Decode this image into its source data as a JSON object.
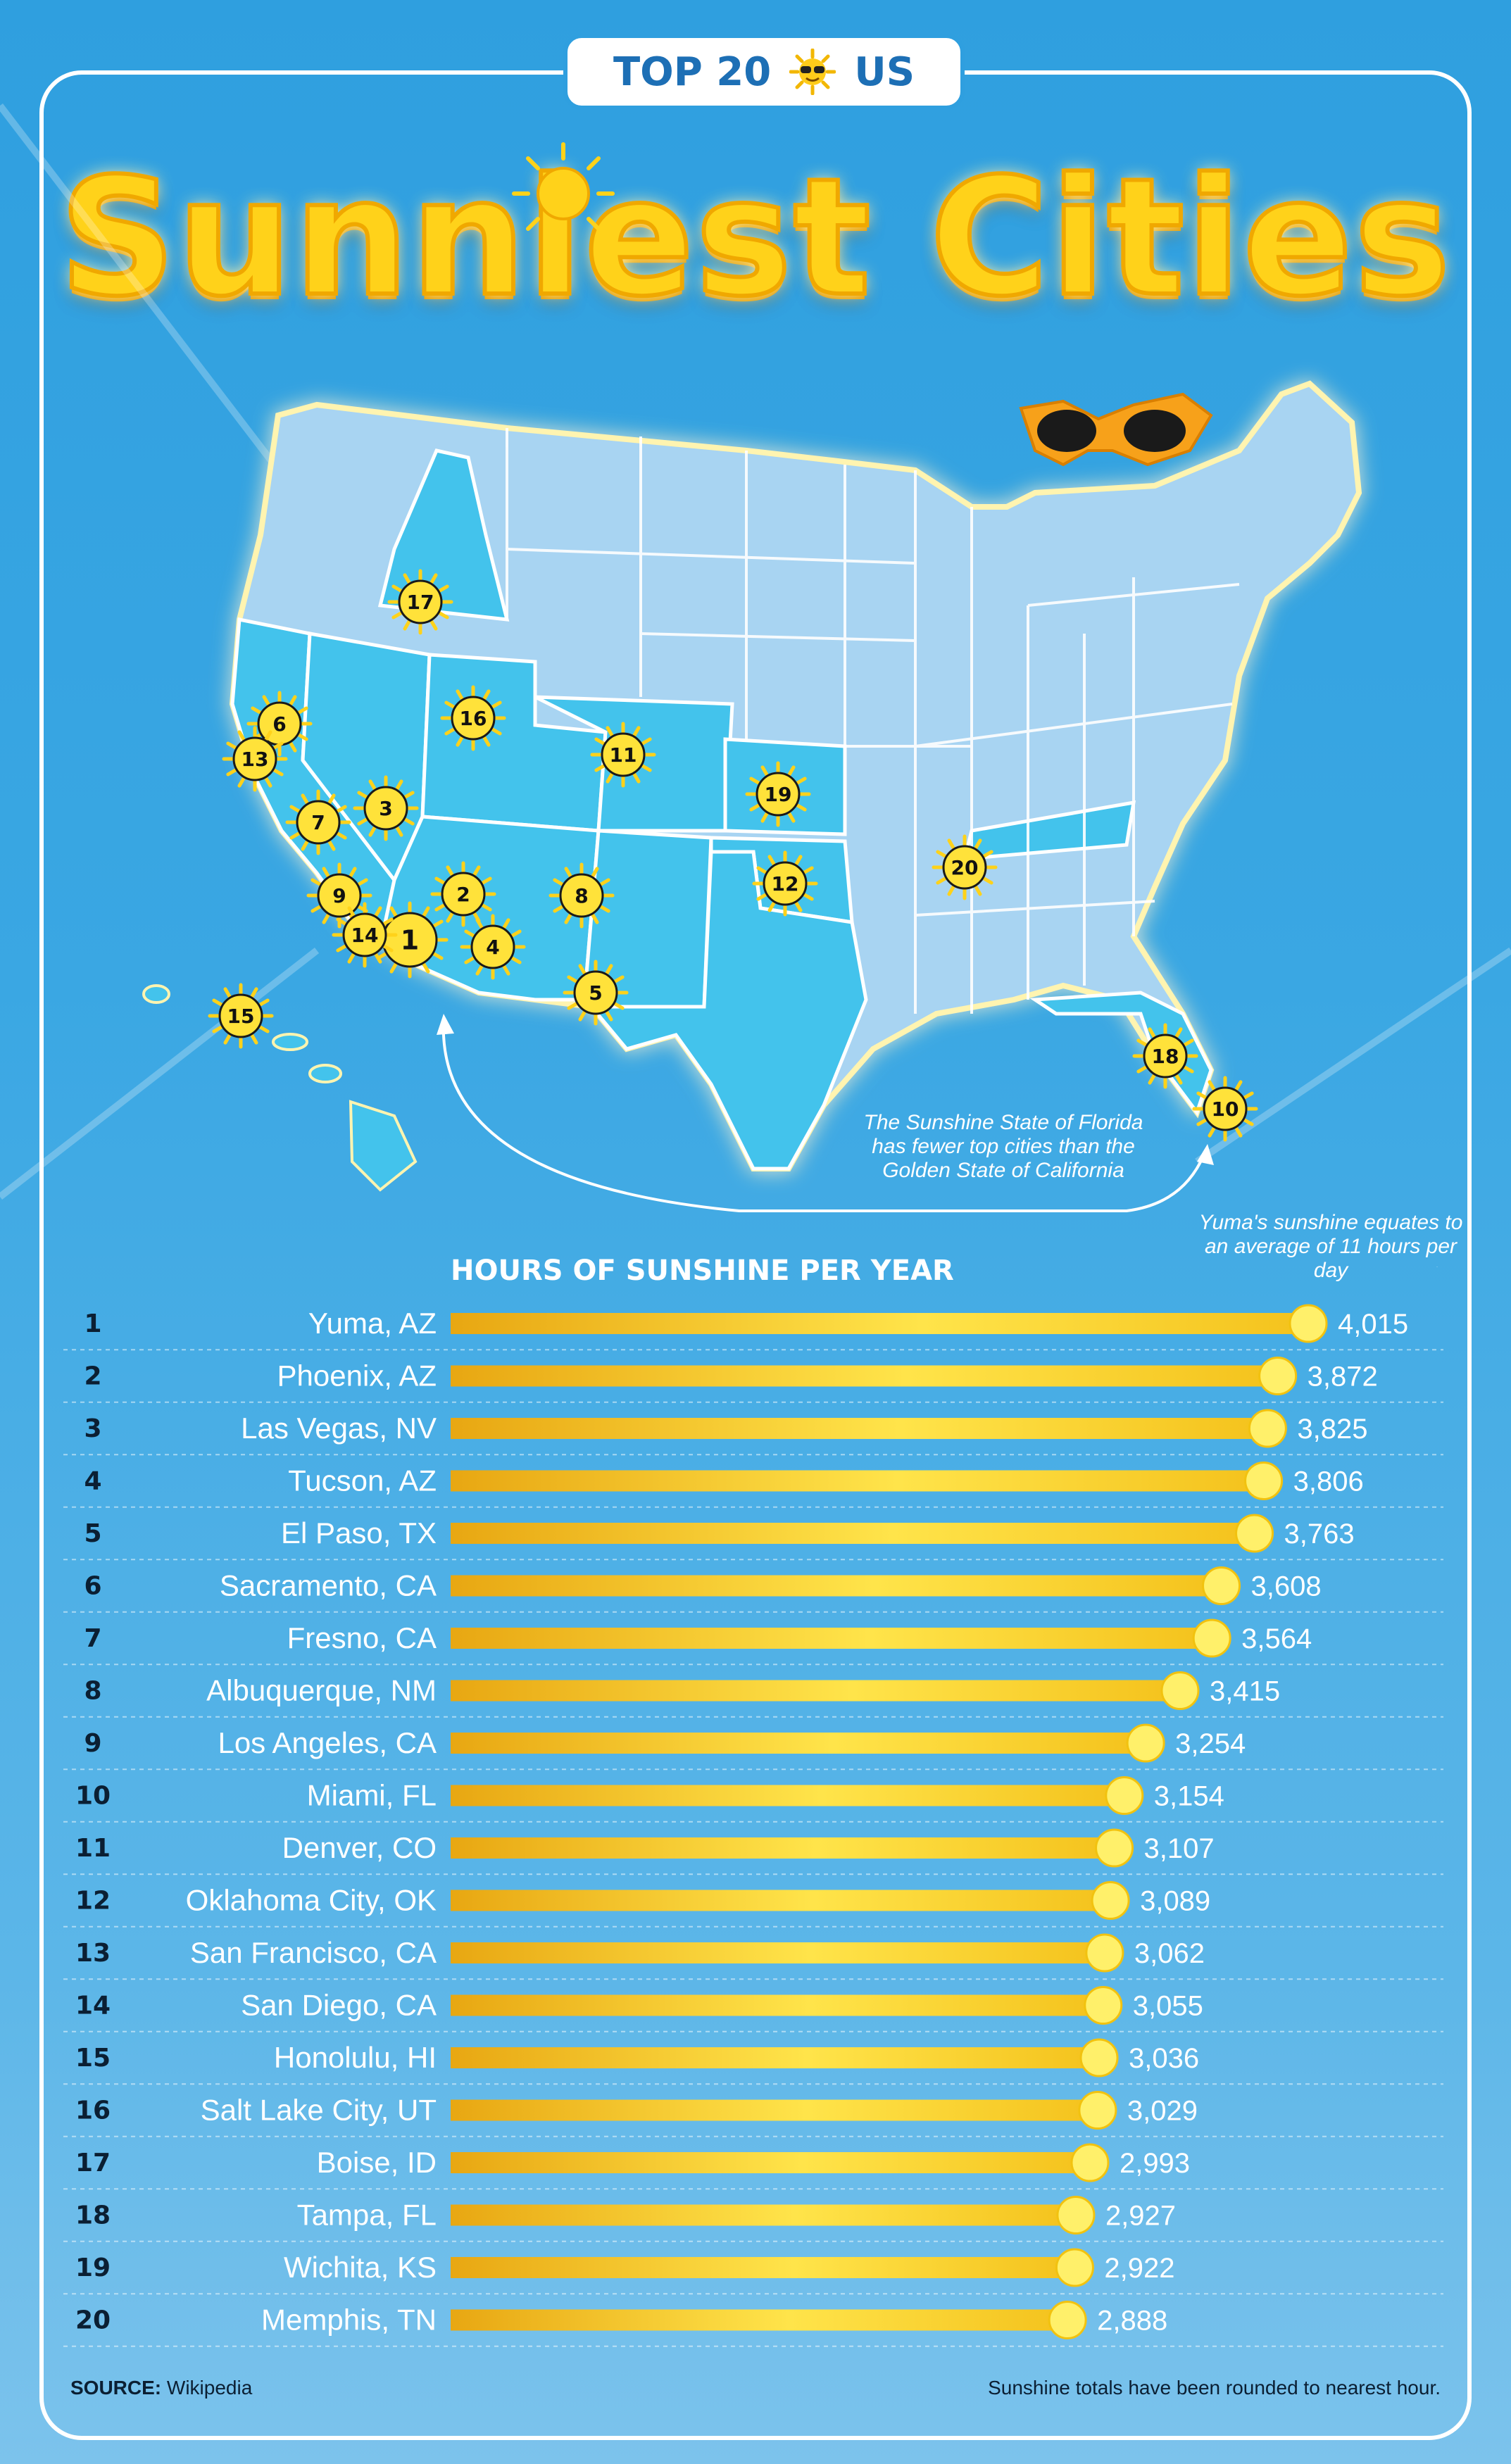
{
  "badge": {
    "left": "TOP 20",
    "right": "US",
    "icon": "sun-with-sunglasses-icon"
  },
  "title": "Sunniest Cities",
  "map": {
    "note": "The Sunshine State of Florida has fewer top cities than the Golden State of California",
    "markers": [
      "1",
      "2",
      "3",
      "4",
      "5",
      "6",
      "7",
      "8",
      "9",
      "10",
      "11",
      "12",
      "13",
      "14",
      "15",
      "16",
      "17",
      "18",
      "19",
      "20"
    ]
  },
  "yuma_note": "Yuma's sunshine equates to an average of 11 hours per day",
  "chart_data": {
    "type": "bar",
    "title": "HOURS OF SUNSHINE PER YEAR",
    "ranks": [
      "1",
      "2",
      "3",
      "4",
      "5",
      "6",
      "7",
      "8",
      "9",
      "10",
      "11",
      "12",
      "13",
      "14",
      "15",
      "16",
      "17",
      "18",
      "19",
      "20"
    ],
    "categories": [
      "Yuma, AZ",
      "Phoenix, AZ",
      "Las Vegas, NV",
      "Tucson, AZ",
      "El Paso, TX",
      "Sacramento, CA",
      "Fresno, CA",
      "Albuquerque, NM",
      "Los Angeles, CA",
      "Miami, FL",
      "Denver, CO",
      "Oklahoma City, OK",
      "San Francisco, CA",
      "San Diego, CA",
      "Honolulu, HI",
      "Salt Lake City, UT",
      "Boise, ID",
      "Tampa, FL",
      "Wichita, KS",
      "Memphis, TN"
    ],
    "values": [
      4015,
      3872,
      3825,
      3806,
      3763,
      3608,
      3564,
      3415,
      3254,
      3154,
      3107,
      3089,
      3062,
      3055,
      3036,
      3029,
      2993,
      2927,
      2922,
      2888
    ],
    "value_labels": [
      "4,015",
      "3,872",
      "3,825",
      "3,806",
      "3,763",
      "3,608",
      "3,564",
      "3,415",
      "3,254",
      "3,154",
      "3,107",
      "3,089",
      "3,062",
      "3,055",
      "3,036",
      "3,029",
      "2,993",
      "2,927",
      "2,922",
      "2,888"
    ],
    "orientation": "horizontal",
    "colors": {
      "bar_start": "#e8a712",
      "bar_end": "#ffe44a",
      "dot": "#fff06a"
    }
  },
  "footer": {
    "source_label": "SOURCE:",
    "source_value": "Wikipedia",
    "note": "Sunshine totals have been rounded to nearest hour."
  }
}
